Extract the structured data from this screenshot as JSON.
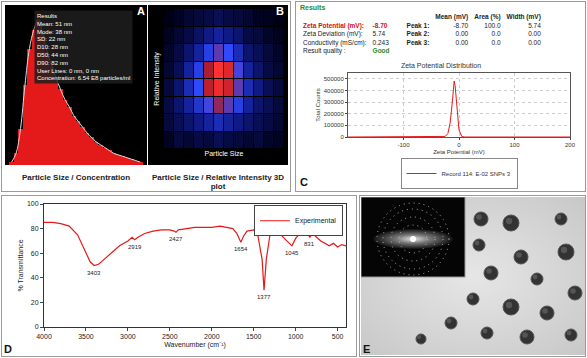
{
  "chart_data": [
    {
      "label": "A",
      "type": "histogram",
      "caption": "Particle Size / Concentration",
      "annotations": [
        "Results",
        "Mean: 51 nm",
        "Mode: 38 nm",
        "SD: 22 nm",
        "D10: 28 nm",
        "D50: 44 nm",
        "D90: 82 nm",
        "User Lines: 0 nm, 0 nm",
        "Concentration: 6.54 E8 particles/ml"
      ],
      "bins": [
        5,
        10,
        15,
        20,
        25,
        30,
        35,
        40,
        45,
        50,
        55,
        60,
        65,
        70,
        75,
        80,
        85,
        90,
        95,
        100,
        105,
        110,
        115,
        120,
        125,
        130,
        135,
        140,
        145,
        150,
        155
      ],
      "counts": [
        0.02,
        0.08,
        0.25,
        0.55,
        0.8,
        0.93,
        1.0,
        0.9,
        0.78,
        0.68,
        0.6,
        0.52,
        0.45,
        0.4,
        0.34,
        0.3,
        0.26,
        0.22,
        0.19,
        0.16,
        0.14,
        0.12,
        0.1,
        0.08,
        0.07,
        0.06,
        0.05,
        0.04,
        0.03,
        0.02
      ],
      "xlim": [
        0,
        160
      ],
      "ylim": [
        0,
        1.1
      ],
      "color": "#e41a1a",
      "tick_labels": false,
      "grid": false
    },
    {
      "label": "B",
      "type": "heatmap",
      "caption": "Particle Size / Relative Intensity 3D plot",
      "xlabel": "Particle Size",
      "ylabel": "Relative Intensity",
      "cells": [
        [
          0.05,
          0.1,
          0.08,
          0.12,
          0.1,
          0.15,
          0.12,
          0.1,
          0.08,
          0.1,
          0.06,
          0.05
        ],
        [
          0.1,
          0.15,
          0.2,
          0.25,
          0.3,
          0.35,
          0.3,
          0.25,
          0.2,
          0.15,
          0.12,
          0.08
        ],
        [
          0.12,
          0.2,
          0.3,
          0.4,
          0.55,
          0.7,
          0.6,
          0.45,
          0.3,
          0.2,
          0.15,
          0.1
        ],
        [
          0.1,
          0.2,
          0.35,
          0.5,
          0.8,
          0.95,
          0.85,
          0.6,
          0.35,
          0.25,
          0.15,
          0.1
        ],
        [
          0.08,
          0.15,
          0.3,
          0.45,
          0.75,
          1.0,
          0.9,
          0.55,
          0.3,
          0.2,
          0.12,
          0.08
        ],
        [
          0.06,
          0.12,
          0.2,
          0.3,
          0.45,
          0.6,
          0.5,
          0.35,
          0.2,
          0.15,
          0.1,
          0.06
        ],
        [
          0.04,
          0.08,
          0.12,
          0.18,
          0.25,
          0.3,
          0.25,
          0.2,
          0.12,
          0.1,
          0.06,
          0.04
        ],
        [
          0.02,
          0.05,
          0.08,
          0.1,
          0.12,
          0.15,
          0.12,
          0.1,
          0.08,
          0.05,
          0.04,
          0.02
        ]
      ],
      "tick_labels": false
    },
    {
      "label": "C",
      "type": "line",
      "title": "Zeta Potential Distribution",
      "xlabel": "Zeta Potential (mV)",
      "ylabel": "Total Counts",
      "x": [
        -200,
        -40,
        -30,
        -25,
        -20,
        -16,
        -12,
        -10,
        -8.7,
        -7,
        -5,
        -2,
        0,
        5,
        10,
        200
      ],
      "series": [
        {
          "name": "Record 114: E-02 SNPs 3",
          "color": "#e41a1a",
          "values": [
            0,
            0,
            0,
            5000,
            30000,
            120000,
            300000,
            420000,
            480000,
            440000,
            320000,
            150000,
            60000,
            5000,
            0,
            0
          ]
        }
      ],
      "xlim": [
        -200,
        200
      ],
      "xticks": [
        -100,
        0,
        100,
        200
      ],
      "ylim": [
        0,
        550000
      ],
      "yticks": [
        0,
        100000,
        200000,
        300000,
        400000,
        500000
      ],
      "grid": true,
      "legend": "bottom",
      "table": {
        "heading": "Results",
        "columns": [
          "Mean (mV)",
          "Area (%)",
          "Width (mV)"
        ],
        "rows": [
          [
            "Zeta Potential (mV):",
            "-8.70"
          ],
          [
            "Zeta Deviation (mV):",
            "5.74"
          ],
          [
            "Conductivity (mS/cm):",
            "0.243"
          ]
        ],
        "peaks": [
          [
            "Peak 1:",
            "-8.70",
            "100.0",
            "5.74"
          ],
          [
            "Peak 2:",
            "0.00",
            "0.0",
            "0.00"
          ],
          [
            "Peak 3:",
            "0.00",
            "0.0",
            "0.00"
          ]
        ],
        "quality": [
          "Result quality :",
          "Good"
        ]
      }
    },
    {
      "label": "D",
      "type": "line",
      "xlabel": "Wavenumber (cm⁻¹)",
      "ylabel": "% Transmittance",
      "x": [
        4000,
        3900,
        3800,
        3700,
        3600,
        3500,
        3450,
        3403,
        3350,
        3300,
        3200,
        3100,
        3000,
        2950,
        2919,
        2880,
        2800,
        2700,
        2600,
        2500,
        2450,
        2427,
        2400,
        2300,
        2200,
        2100,
        2000,
        1900,
        1800,
        1750,
        1700,
        1654,
        1620,
        1580,
        1500,
        1450,
        1400,
        1377,
        1350,
        1300,
        1250,
        1200,
        1150,
        1100,
        1045,
        1000,
        950,
        900,
        850,
        831,
        800,
        700,
        650,
        600,
        550,
        500,
        450,
        400
      ],
      "series": [
        {
          "name": "Experimental",
          "color": "#e41a1a",
          "values": [
            85,
            85,
            84,
            82,
            75,
            60,
            53,
            50,
            51,
            54,
            60,
            66,
            70,
            73,
            71,
            73,
            76,
            78,
            79,
            79,
            78,
            77,
            79,
            80,
            81,
            81,
            81,
            82,
            81,
            80,
            76,
            69,
            74,
            78,
            79,
            74,
            55,
            30,
            55,
            78,
            80,
            77,
            73,
            70,
            66,
            72,
            76,
            76,
            75,
            73,
            76,
            70,
            68,
            66,
            68,
            65,
            67,
            66
          ]
        }
      ],
      "xlim": [
        4000,
        400
      ],
      "xticks": [
        4000,
        3500,
        3000,
        2500,
        2000,
        1500,
        1000,
        500
      ],
      "ylim": [
        0,
        100
      ],
      "yticks": [
        0,
        20,
        40,
        60,
        80,
        100
      ],
      "grid": false,
      "legend": "top right",
      "annotations": [
        {
          "text": "3403",
          "x": 3403,
          "y": 50
        },
        {
          "text": "2919",
          "x": 2919,
          "y": 71
        },
        {
          "text": "2427",
          "x": 2427,
          "y": 77
        },
        {
          "text": "1654",
          "x": 1654,
          "y": 69
        },
        {
          "text": "1377",
          "x": 1377,
          "y": 30
        },
        {
          "text": "1045",
          "x": 1045,
          "y": 66
        },
        {
          "text": "831",
          "x": 831,
          "y": 73
        }
      ]
    }
  ],
  "micrograph": {
    "label": "E"
  }
}
